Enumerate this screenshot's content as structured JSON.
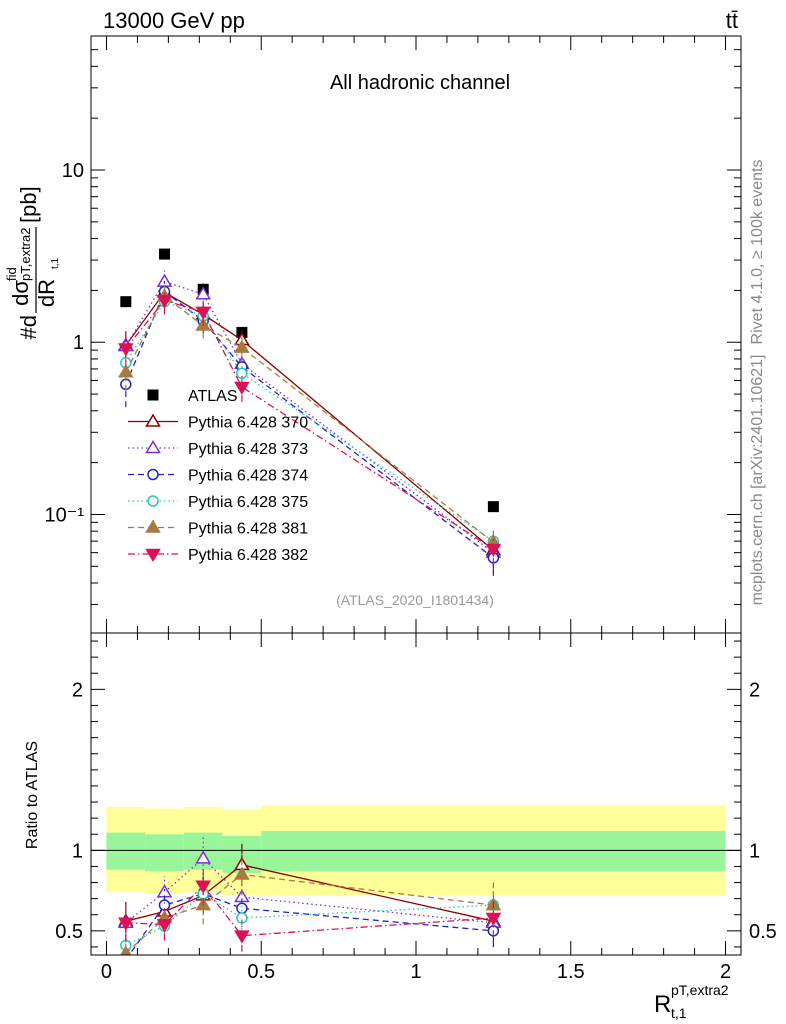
{
  "header": {
    "left": "13000 GeV pp",
    "right": "tt̄"
  },
  "side_labels": {
    "rivet": "Rivet 4.1.0, ≥ 100k events",
    "mcplots": "mcplots.cern.ch [arXiv:2401.10621]"
  },
  "chart_data": [
    {
      "type": "scatter",
      "title": "All hadronic channel",
      "analysis_tag": "(ATLAS_2020_I1801434)",
      "ylabel": {
        "prefix": "#d",
        "numerator": "dσ",
        "num_sup": "fid",
        "num_sub": "pT,extra2",
        "denominator": "dR",
        "den_sub": "t,1",
        "unit": "[pb]"
      },
      "yscale": "log",
      "ylim": [
        0.0205,
        60
      ],
      "xlim": [
        -0.05,
        2.05
      ],
      "y_ticks": [
        {
          "value": 0.1,
          "label": "10⁻¹"
        },
        {
          "value": 1,
          "label": "1"
        },
        {
          "value": 10,
          "label": "10"
        }
      ],
      "legend_position": "lower-left",
      "series": [
        {
          "name": "ATLAS",
          "color": "#000000",
          "marker": "square-filled",
          "line": "none",
          "x": [
            0.0625,
            0.1875,
            0.3125,
            0.4375,
            1.25
          ],
          "y": [
            1.72,
            3.25,
            2.03,
            1.14,
            0.111
          ],
          "err": [
            0.05,
            0.08,
            0.06,
            0.04,
            0.005
          ]
        },
        {
          "name": "Pythia 6.428 370",
          "color": "#8b0000",
          "marker": "triangle-open",
          "line": "solid",
          "x": [
            0.0625,
            0.1875,
            0.3125,
            0.4375,
            1.25
          ],
          "y": [
            0.96,
            1.95,
            1.45,
            1.03,
            0.062
          ],
          "err": [
            0.2,
            0.3,
            0.25,
            0.15,
            0.015
          ]
        },
        {
          "name": "Pythia 6.428 373",
          "color": "#7b2fd0",
          "marker": "triangle-open",
          "line": "dotted",
          "x": [
            0.0625,
            0.1875,
            0.3125,
            0.4375,
            1.25
          ],
          "y": [
            0.95,
            2.25,
            1.9,
            0.75,
            0.06
          ],
          "err": [
            0.2,
            0.35,
            0.3,
            0.12,
            0.015
          ]
        },
        {
          "name": "Pythia 6.428 374",
          "color": "#2222cc",
          "marker": "circle-open",
          "line": "dashed",
          "x": [
            0.0625,
            0.1875,
            0.3125,
            0.4375,
            1.25
          ],
          "y": [
            0.57,
            1.97,
            1.33,
            0.72,
            0.056
          ],
          "err": [
            0.15,
            0.3,
            0.2,
            0.12,
            0.012
          ]
        },
        {
          "name": "Pythia 6.428 375",
          "color": "#22ccbb",
          "marker": "circle-open",
          "line": "dotted",
          "x": [
            0.0625,
            0.1875,
            0.3125,
            0.4375,
            1.25
          ],
          "y": [
            0.76,
            1.72,
            1.42,
            0.66,
            0.07
          ],
          "err": [
            0.15,
            0.25,
            0.2,
            0.1,
            0.012
          ]
        },
        {
          "name": "Pythia 6.428 381",
          "color": "#a87a40",
          "marker": "triangle-filled",
          "line": "dashed",
          "x": [
            0.0625,
            0.1875,
            0.3125,
            0.4375,
            1.25
          ],
          "y": [
            0.67,
            1.85,
            1.25,
            0.93,
            0.069
          ],
          "err": [
            0.15,
            0.3,
            0.2,
            0.15,
            0.012
          ]
        },
        {
          "name": "Pythia 6.428 382",
          "color": "#dd1155",
          "marker": "triangle-down-filled",
          "line": "dashdot",
          "x": [
            0.0625,
            0.1875,
            0.3125,
            0.4375,
            1.25
          ],
          "y": [
            0.92,
            1.75,
            1.5,
            0.55,
            0.063
          ],
          "err": [
            0.2,
            0.3,
            0.25,
            0.1,
            0.012
          ]
        }
      ]
    },
    {
      "type": "scatter",
      "ylabel": "Ratio to ATLAS",
      "xlabel": {
        "base": "R",
        "sup": "pT,extra2",
        "sub": "t,1"
      },
      "xlim": [
        -0.05,
        2.05
      ],
      "ylim": [
        0.35,
        2.35
      ],
      "x_ticks": [
        0,
        0.5,
        1,
        1.5,
        2
      ],
      "x_tick_labels": [
        "0",
        "0.5",
        "1",
        "1.5",
        "2"
      ],
      "y_ticks": [
        0.5,
        1,
        2
      ],
      "y_tick_labels": [
        "0.5",
        "1",
        "2"
      ],
      "reference_line": 1,
      "bands": [
        {
          "x0": 0,
          "x1": 0.125,
          "yellow": [
            0.74,
            1.27
          ],
          "green": [
            0.88,
            1.11
          ]
        },
        {
          "x0": 0.125,
          "x1": 0.25,
          "yellow": [
            0.73,
            1.26
          ],
          "green": [
            0.87,
            1.1
          ]
        },
        {
          "x0": 0.25,
          "x1": 0.375,
          "yellow": [
            0.74,
            1.27
          ],
          "green": [
            0.88,
            1.11
          ]
        },
        {
          "x0": 0.375,
          "x1": 0.5,
          "yellow": [
            0.72,
            1.25
          ],
          "green": [
            0.86,
            1.09
          ]
        },
        {
          "x0": 0.5,
          "x1": 2.0,
          "yellow": [
            0.72,
            1.28
          ],
          "green": [
            0.87,
            1.12
          ]
        }
      ],
      "series": [
        {
          "name": "Pythia 6.428 370",
          "color": "#8b0000",
          "marker": "triangle-open",
          "line": "solid",
          "x": [
            0.0625,
            0.1875,
            0.3125,
            0.4375,
            1.25
          ],
          "y": [
            0.56,
            0.62,
            0.72,
            0.91,
            0.56
          ],
          "err": [
            0.12,
            0.1,
            0.12,
            0.13,
            0.12
          ]
        },
        {
          "name": "Pythia 6.428 373",
          "color": "#7b2fd0",
          "marker": "triangle-open",
          "line": "dotted",
          "x": [
            0.0625,
            0.1875,
            0.3125,
            0.4375,
            1.25
          ],
          "y": [
            0.55,
            0.74,
            0.95,
            0.71,
            0.55
          ],
          "err": [
            0.12,
            0.1,
            0.13,
            0.1,
            0.12
          ]
        },
        {
          "name": "Pythia 6.428 374",
          "color": "#2222cc",
          "marker": "circle-open",
          "line": "dashed",
          "x": [
            0.0625,
            0.1875,
            0.3125,
            0.4375,
            1.25
          ],
          "y": [
            0.32,
            0.66,
            0.73,
            0.64,
            0.5
          ],
          "err": [
            0.1,
            0.1,
            0.12,
            0.1,
            0.1
          ]
        },
        {
          "name": "Pythia 6.428 375",
          "color": "#22ccbb",
          "marker": "circle-open",
          "line": "dotted",
          "x": [
            0.0625,
            0.1875,
            0.3125,
            0.4375,
            1.25
          ],
          "y": [
            0.41,
            0.53,
            0.73,
            0.58,
            0.66
          ],
          "err": [
            0.1,
            0.08,
            0.12,
            0.1,
            0.12
          ]
        },
        {
          "name": "Pythia 6.428 381",
          "color": "#a87a40",
          "marker": "triangle-filled",
          "line": "dashed",
          "x": [
            0.0625,
            0.1875,
            0.3125,
            0.4375,
            1.25
          ],
          "y": [
            0.36,
            0.58,
            0.66,
            0.85,
            0.66
          ],
          "err": [
            0.1,
            0.1,
            0.12,
            0.13,
            0.14
          ]
        },
        {
          "name": "Pythia 6.428 382",
          "color": "#dd1155",
          "marker": "triangle-down-filled",
          "line": "dashdot",
          "x": [
            0.0625,
            0.1875,
            0.3125,
            0.4375,
            1.25
          ],
          "y": [
            0.55,
            0.54,
            0.78,
            0.47,
            0.58
          ],
          "err": [
            0.12,
            0.1,
            0.12,
            0.1,
            0.12
          ]
        }
      ]
    }
  ]
}
